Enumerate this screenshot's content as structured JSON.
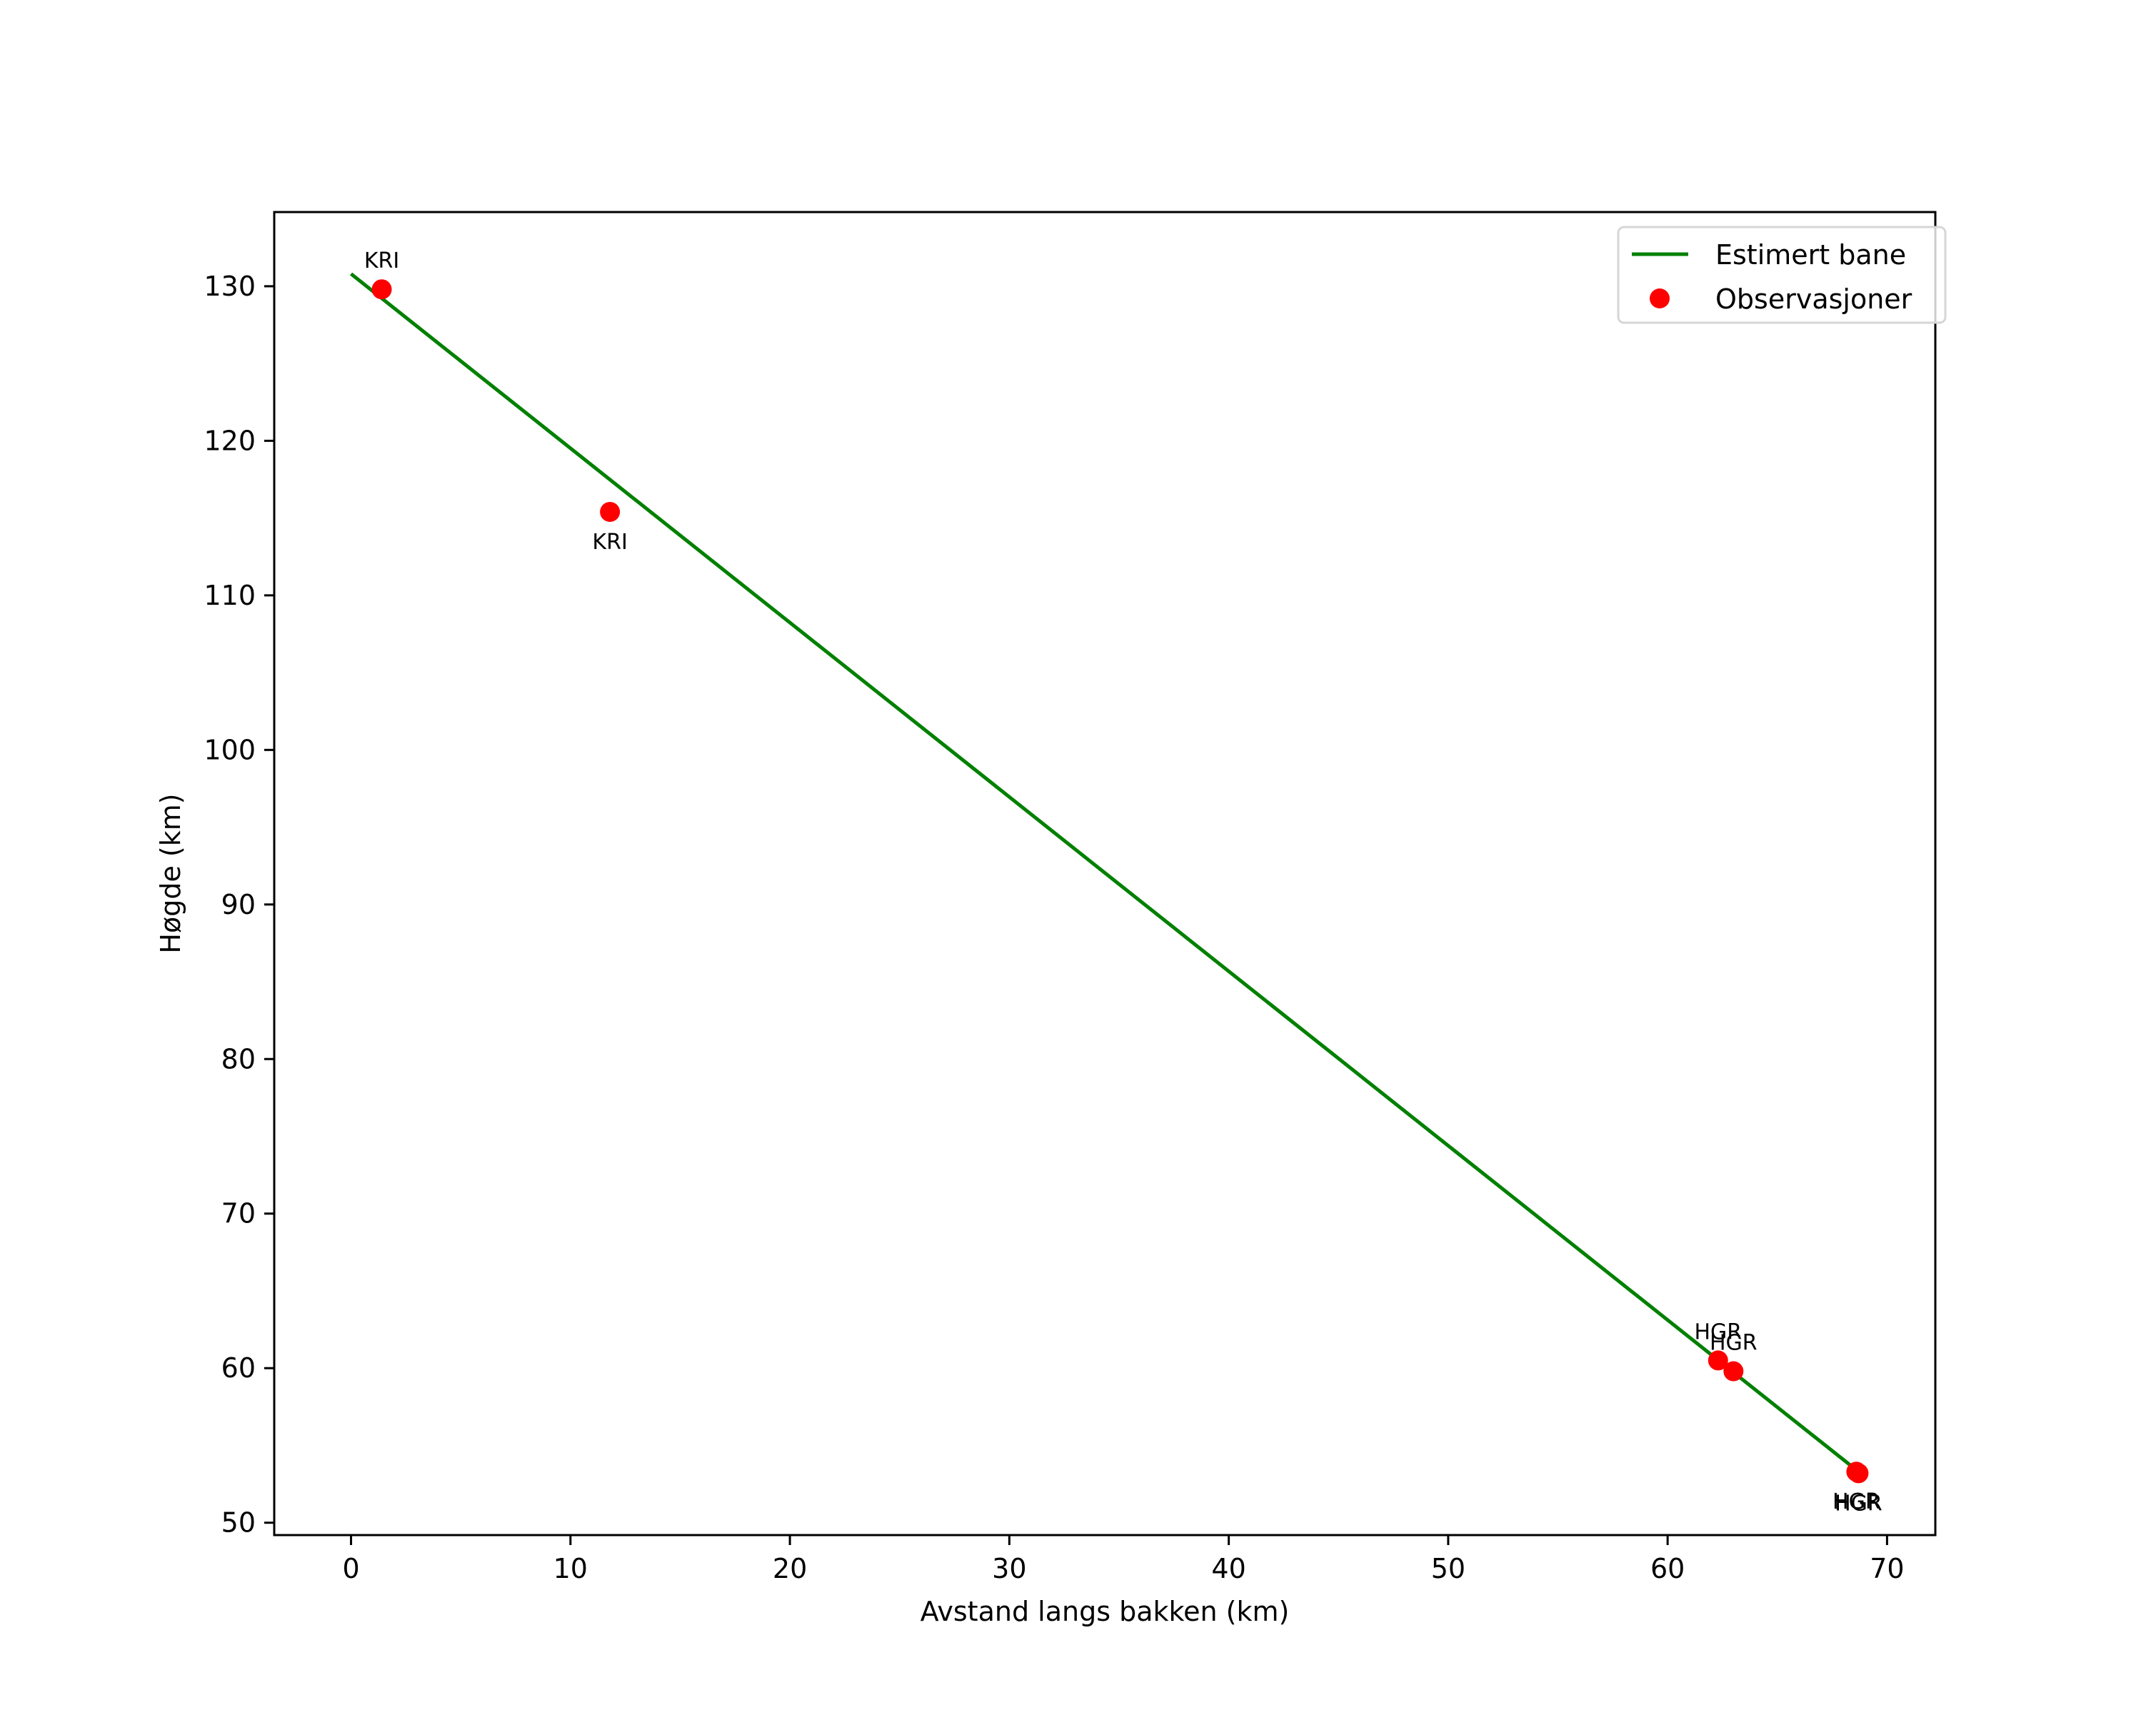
{
  "chart_data": {
    "type": "line+scatter",
    "title": "",
    "xlabel": "Avstand langs bakken (km)",
    "ylabel": "Høgde (km)",
    "xlim": [
      -3.5,
      72.2
    ],
    "ylim": [
      49.2,
      134.8
    ],
    "xticks": [
      0,
      10,
      20,
      30,
      40,
      50,
      60,
      70
    ],
    "yticks": [
      50,
      60,
      70,
      80,
      90,
      100,
      110,
      120,
      130
    ],
    "grid": false,
    "legend_position": "upper right",
    "series": [
      {
        "name": "Estimert bane",
        "type": "line",
        "color": "#008000",
        "x": [
          0,
          68.7
        ],
        "y": [
          130.8,
          53.3
        ]
      },
      {
        "name": "Observasjoner",
        "type": "scatter",
        "color": "#ff0000",
        "points": [
          {
            "x": 1.4,
            "y": 129.8,
            "label": "KRI",
            "label_pos": "above"
          },
          {
            "x": 11.8,
            "y": 115.4,
            "label": "KRI",
            "label_pos": "below"
          },
          {
            "x": 62.3,
            "y": 60.5,
            "label": "HGR",
            "label_pos": "above"
          },
          {
            "x": 63.0,
            "y": 59.8,
            "label": "HGR",
            "label_pos": "above"
          },
          {
            "x": 68.6,
            "y": 53.3,
            "label": "HGR",
            "label_pos": "below"
          },
          {
            "x": 68.7,
            "y": 53.2,
            "label": "HGR",
            "label_pos": "below"
          }
        ]
      }
    ]
  }
}
